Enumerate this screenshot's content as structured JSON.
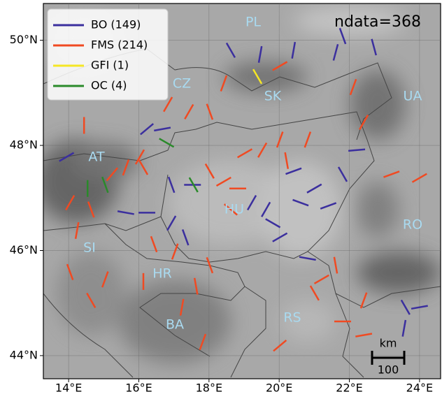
{
  "map": {
    "annotation": "ndata=368",
    "xlim": [
      13.28,
      24.6
    ],
    "ylim": [
      43.56,
      50.7
    ],
    "xticks": [
      {
        "value": 14,
        "label": "14°E"
      },
      {
        "value": 16,
        "label": "16°E"
      },
      {
        "value": 18,
        "label": "18°E"
      },
      {
        "value": 20,
        "label": "20°E"
      },
      {
        "value": 22,
        "label": "22°E"
      },
      {
        "value": 24,
        "label": "24°E"
      }
    ],
    "yticks": [
      {
        "value": 44,
        "label": "44°N"
      },
      {
        "value": 46,
        "label": "46°N"
      },
      {
        "value": 48,
        "label": "48°N"
      },
      {
        "value": 50,
        "label": "50°N"
      }
    ],
    "grid": true,
    "legend": "upper left",
    "countries": [
      "PL",
      "CZ",
      "SK",
      "UA",
      "AT",
      "HU",
      "RO",
      "SI",
      "HR",
      "BA",
      "RS"
    ],
    "scale_bar": {
      "unit": "km",
      "label": "100"
    },
    "series": [
      {
        "name": "BO (149)",
        "color": "#3b2f9e",
        "points": [
          [
            18.62,
            49.81,
            150
          ],
          [
            19.46,
            49.73,
            10
          ],
          [
            20.41,
            49.81,
            10
          ],
          [
            21.61,
            49.77,
            15
          ],
          [
            21.81,
            50.08,
            160
          ],
          [
            22.7,
            49.87,
            165
          ],
          [
            16.23,
            48.31,
            50
          ],
          [
            16.67,
            48.31,
            80
          ],
          [
            13.94,
            47.78,
            60
          ],
          [
            20.41,
            47.51,
            70
          ],
          [
            21.0,
            47.18,
            60
          ],
          [
            21.4,
            46.85,
            70
          ],
          [
            19.82,
            46.52,
            120
          ],
          [
            20.02,
            46.25,
            60
          ],
          [
            19.62,
            46.78,
            30
          ],
          [
            20.61,
            46.91,
            110
          ],
          [
            21.81,
            47.45,
            150
          ],
          [
            16.93,
            46.52,
            30
          ],
          [
            17.33,
            46.25,
            160
          ],
          [
            16.23,
            46.72,
            90
          ],
          [
            15.63,
            46.72,
            100
          ],
          [
            17.53,
            47.25,
            90
          ],
          [
            16.93,
            47.25,
            160
          ],
          [
            22.21,
            47.91,
            85
          ],
          [
            23.6,
            44.92,
            150
          ],
          [
            24.0,
            44.92,
            80
          ],
          [
            23.56,
            44.52,
            10
          ],
          [
            20.81,
            45.85,
            100
          ],
          [
            19.22,
            46.91,
            30
          ]
        ]
      },
      {
        "name": "FMS (214)",
        "color": "#f04a22",
        "points": [
          [
            14.44,
            48.38,
            0
          ],
          [
            15.63,
            47.58,
            20
          ],
          [
            16.03,
            47.78,
            30
          ],
          [
            15.24,
            47.45,
            40
          ],
          [
            14.04,
            46.91,
            30
          ],
          [
            14.64,
            46.78,
            160
          ],
          [
            14.24,
            46.38,
            10
          ],
          [
            14.04,
            45.59,
            160
          ],
          [
            15.04,
            45.45,
            20
          ],
          [
            14.64,
            45.05,
            150
          ],
          [
            16.13,
            45.41,
            0
          ],
          [
            16.43,
            46.12,
            160
          ],
          [
            17.03,
            45.98,
            20
          ],
          [
            17.63,
            45.32,
            170
          ],
          [
            17.23,
            44.92,
            10
          ],
          [
            17.82,
            44.26,
            20
          ],
          [
            16.83,
            48.78,
            30
          ],
          [
            17.43,
            48.64,
            30
          ],
          [
            18.02,
            47.51,
            150
          ],
          [
            18.42,
            47.31,
            60
          ],
          [
            18.82,
            47.18,
            90
          ],
          [
            19.02,
            47.85,
            60
          ],
          [
            19.52,
            47.91,
            30
          ],
          [
            20.21,
            47.71,
            170
          ],
          [
            20.02,
            48.11,
            20
          ],
          [
            18.62,
            46.78,
            130
          ],
          [
            18.02,
            45.72,
            160
          ],
          [
            21.21,
            45.45,
            60
          ],
          [
            21.01,
            45.19,
            150
          ],
          [
            21.61,
            45.72,
            170
          ],
          [
            22.41,
            45.05,
            20
          ],
          [
            21.81,
            44.65,
            90
          ],
          [
            20.02,
            44.19,
            50
          ],
          [
            22.41,
            44.39,
            80
          ],
          [
            23.2,
            47.45,
            70
          ],
          [
            24.0,
            47.38,
            60
          ],
          [
            20.81,
            48.11,
            20
          ],
          [
            22.41,
            48.44,
            30
          ],
          [
            18.42,
            49.18,
            20
          ],
          [
            18.02,
            48.64,
            160
          ],
          [
            20.02,
            49.51,
            60
          ],
          [
            22.11,
            49.11,
            20
          ],
          [
            16.13,
            47.58,
            150
          ]
        ]
      },
      {
        "name": "GFI (1)",
        "color": "#f5e625",
        "points": [
          [
            19.38,
            49.31,
            150
          ]
        ]
      },
      {
        "name": "OC (4)",
        "color": "#2a8a2a",
        "points": [
          [
            16.79,
            48.05,
            120
          ],
          [
            14.54,
            47.18,
            0
          ],
          [
            15.04,
            47.25,
            160
          ],
          [
            17.56,
            47.25,
            150
          ]
        ]
      }
    ]
  }
}
